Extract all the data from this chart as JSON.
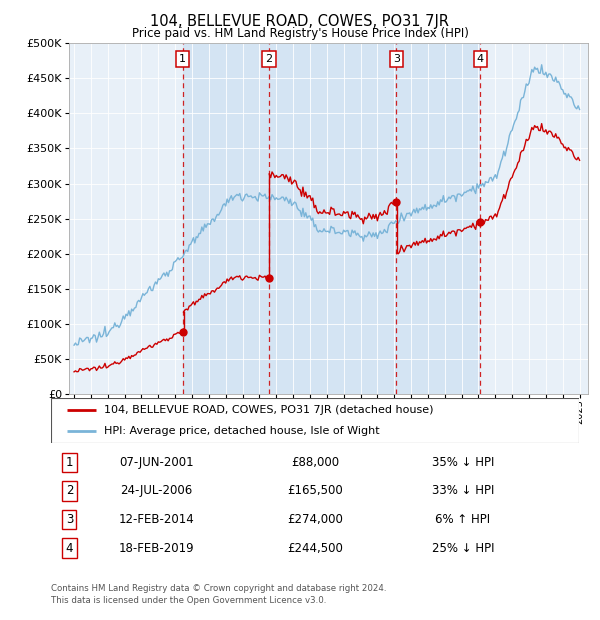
{
  "title": "104, BELLEVUE ROAD, COWES, PO31 7JR",
  "subtitle": "Price paid vs. HM Land Registry's House Price Index (HPI)",
  "legend_entry1": "104, BELLEVUE ROAD, COWES, PO31 7JR (detached house)",
  "legend_entry2": "HPI: Average price, detached house, Isle of Wight",
  "footer1": "Contains HM Land Registry data © Crown copyright and database right 2024.",
  "footer2": "This data is licensed under the Open Government Licence v3.0.",
  "transactions": [
    {
      "num": 1,
      "date": "07-JUN-2001",
      "price": "£88,000",
      "rel": "35% ↓ HPI",
      "x_year": 2001.44
    },
    {
      "num": 2,
      "date": "24-JUL-2006",
      "price": "£165,500",
      "rel": "33% ↓ HPI",
      "x_year": 2006.56
    },
    {
      "num": 3,
      "date": "12-FEB-2014",
      "price": "£274,000",
      "rel": "6% ↑ HPI",
      "x_year": 2014.12
    },
    {
      "num": 4,
      "date": "18-FEB-2019",
      "price": "£244,500",
      "rel": "25% ↓ HPI",
      "x_year": 2019.12
    }
  ],
  "sale_prices": [
    [
      2001.44,
      88000
    ],
    [
      2006.56,
      165500
    ],
    [
      2014.12,
      274000
    ],
    [
      2019.12,
      244500
    ]
  ],
  "hpi_color": "#7ab4d8",
  "hpi_fill_color": "#ddeeff",
  "price_color": "#cc0000",
  "vline_color": "#cc0000",
  "bg_color": "#e8f0f8",
  "grid_color": "#ffffff",
  "ylim": [
    0,
    500000
  ],
  "yticks": [
    0,
    50000,
    100000,
    150000,
    200000,
    250000,
    300000,
    350000,
    400000,
    450000,
    500000
  ],
  "xlim_start": 1994.7,
  "xlim_end": 2025.5
}
